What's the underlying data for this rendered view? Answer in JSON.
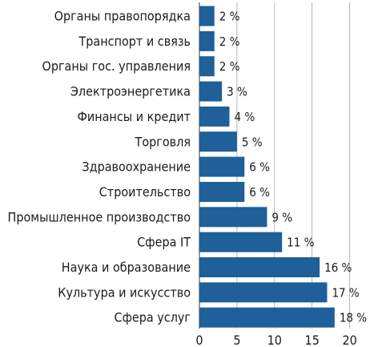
{
  "chart_data": {
    "type": "bar",
    "orientation": "horizontal",
    "categories": [
      "Органы правопорядка",
      "Транспорт и связь",
      "Органы гос. управления",
      "Электроэнергетика",
      "Финансы и кредит",
      "Торговля",
      "Здравоохранение",
      "Строительство",
      "Промышленное производство",
      "Сфера IT",
      "Наука и образование",
      "Культура и искусство",
      "Сфера услуг"
    ],
    "values": [
      2,
      2,
      2,
      3,
      4,
      5,
      6,
      6,
      9,
      11,
      16,
      17,
      18
    ],
    "value_labels": [
      "2 %",
      "2 %",
      "2 %",
      "3 %",
      "4 %",
      "5 %",
      "6 %",
      "6 %",
      "9 %",
      "11 %",
      "16 %",
      "17 %",
      "18 %"
    ],
    "xticks": [
      0,
      5,
      10,
      15,
      20
    ],
    "xlim": [
      0,
      22
    ],
    "grid": true,
    "title": "",
    "xlabel": "",
    "ylabel": "",
    "bar_color": "#1f5f9a"
  }
}
